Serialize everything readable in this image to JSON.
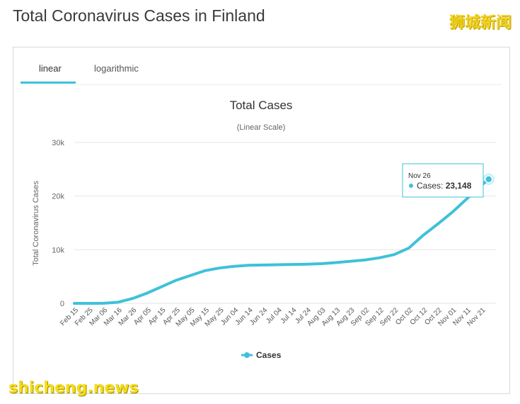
{
  "page": {
    "title": "Total Coronavirus Cases in Finland",
    "watermark_top": "狮城新闻",
    "watermark_bottom": "shicheng.news"
  },
  "tabs": [
    {
      "label": "linear",
      "active": true
    },
    {
      "label": "logarithmic",
      "active": false
    }
  ],
  "colors": {
    "series": "#3fc1d9",
    "tab_accent": "#3fc1d9",
    "grid": "#e6e6e6"
  },
  "chart_data": {
    "type": "line",
    "title": "Total Cases",
    "subtitle": "(Linear Scale)",
    "ylabel": "Total Coronavirus Cases",
    "xlabel": "",
    "ylim": [
      0,
      30000
    ],
    "yticks": [
      {
        "value": 0,
        "label": "0"
      },
      {
        "value": 10000,
        "label": "10k"
      },
      {
        "value": 20000,
        "label": "20k"
      },
      {
        "value": 30000,
        "label": "30k"
      }
    ],
    "xtick_labels": [
      "Feb 15",
      "Feb 25",
      "Mar 06",
      "Mar 16",
      "Mar 26",
      "Apr 05",
      "Apr 15",
      "Apr 25",
      "May 05",
      "May 15",
      "May 25",
      "Jun 04",
      "Jun 14",
      "Jun 24",
      "Jul 04",
      "Jul 14",
      "Jul 24",
      "Aug 03",
      "Aug 13",
      "Aug 23",
      "Sep 02",
      "Sep 12",
      "Sep 22",
      "Oct 02",
      "Oct 12",
      "Oct 22",
      "Nov 01",
      "Nov 11",
      "Nov 21"
    ],
    "grid": true,
    "legend_position": "bottom",
    "series": [
      {
        "name": "Cases",
        "x": [
          "Feb 15",
          "Feb 25",
          "Mar 06",
          "Mar 16",
          "Mar 26",
          "Apr 05",
          "Apr 15",
          "Apr 25",
          "May 05",
          "May 15",
          "May 25",
          "Jun 04",
          "Jun 14",
          "Jun 24",
          "Jul 04",
          "Jul 14",
          "Jul 24",
          "Aug 03",
          "Aug 13",
          "Aug 23",
          "Sep 02",
          "Sep 12",
          "Sep 22",
          "Oct 02",
          "Oct 12",
          "Oct 22",
          "Nov 01",
          "Nov 11",
          "Nov 21",
          "Nov 26"
        ],
        "values": [
          1,
          2,
          12,
          200,
          900,
          1900,
          3100,
          4300,
          5200,
          6100,
          6600,
          6900,
          7100,
          7150,
          7200,
          7250,
          7300,
          7400,
          7600,
          7850,
          8100,
          8500,
          9100,
          10300,
          12700,
          14800,
          17000,
          19500,
          22000,
          23148
        ]
      }
    ],
    "tooltip": {
      "date": "Nov 26",
      "series": "Cases",
      "value_text": "23,148"
    }
  }
}
